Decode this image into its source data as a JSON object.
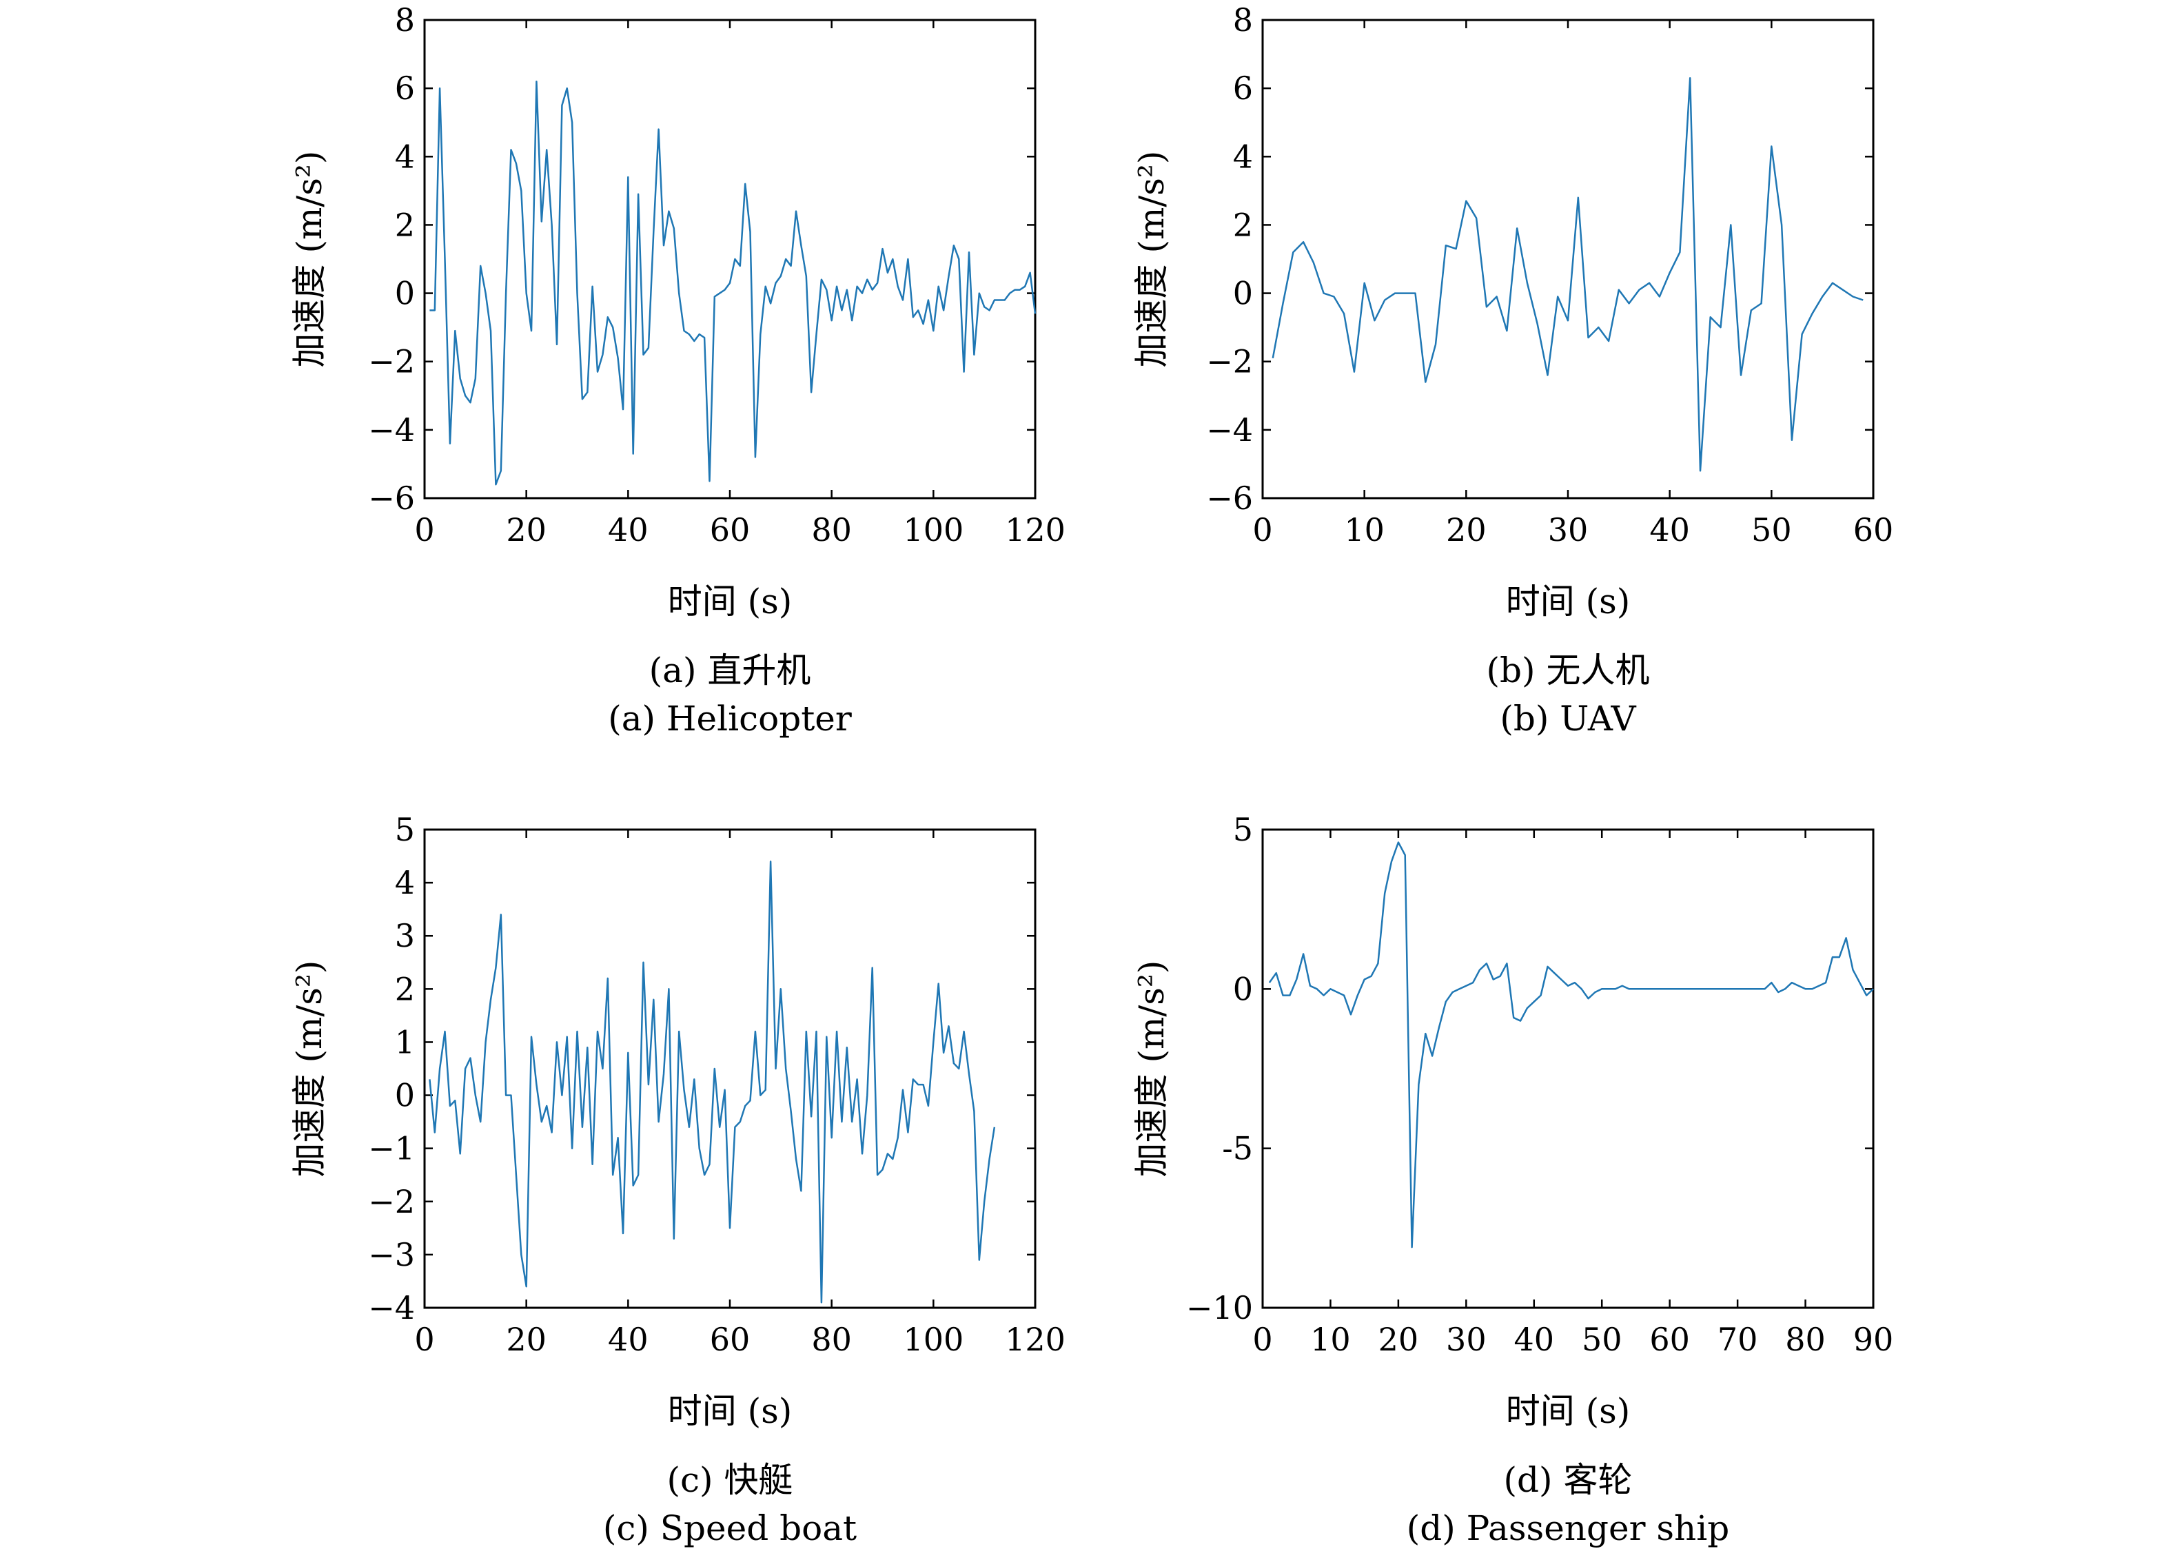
{
  "chart_data": [
    {
      "type": "line",
      "caption_cn": "(a) 直升机",
      "caption_en": "(a) Helicopter",
      "xlabel": "时间 (s)",
      "ylabel": "加速度 (m/s²)",
      "xlim": [
        0,
        120
      ],
      "ylim": [
        -6,
        8
      ],
      "xticks": [
        0,
        20,
        40,
        60,
        80,
        100,
        120
      ],
      "yticks": [
        -6,
        -4,
        -2,
        0,
        2,
        4,
        6,
        8
      ],
      "xtick_labels": [
        "0",
        "20",
        "40",
        "60",
        "80",
        "100",
        "120"
      ],
      "ytick_labels": [
        "−6",
        "−4",
        "−2",
        "0",
        "2",
        "4",
        "6",
        "8"
      ],
      "color": "#1f77b4",
      "x": [
        1,
        2,
        3,
        4,
        5,
        6,
        7,
        8,
        9,
        10,
        11,
        12,
        13,
        14,
        15,
        16,
        17,
        18,
        19,
        20,
        21,
        22,
        23,
        24,
        25,
        26,
        27,
        28,
        29,
        30,
        31,
        32,
        33,
        34,
        35,
        36,
        37,
        38,
        39,
        40,
        41,
        42,
        43,
        44,
        45,
        46,
        47,
        48,
        49,
        50,
        51,
        52,
        53,
        54,
        55,
        56,
        57,
        58,
        59,
        60,
        61,
        62,
        63,
        64,
        65,
        66,
        67,
        68,
        69,
        70,
        71,
        72,
        73,
        74,
        75,
        76,
        77,
        78,
        79,
        80,
        81,
        82,
        83,
        84,
        85,
        86,
        87,
        88,
        89,
        90,
        91,
        92,
        93,
        94,
        95,
        96,
        97,
        98,
        99,
        100,
        101,
        102,
        103,
        104,
        105,
        106,
        107,
        108,
        109,
        110,
        111,
        112,
        113,
        114,
        115,
        116,
        117,
        118,
        119,
        120
      ],
      "y": [
        -0.5,
        -0.5,
        6.0,
        1.0,
        -4.4,
        -1.1,
        -2.5,
        -3.0,
        -3.2,
        -2.5,
        0.8,
        0.0,
        -1.1,
        -5.6,
        -5.2,
        0.0,
        4.2,
        3.8,
        3.0,
        0.0,
        -1.1,
        6.2,
        2.1,
        4.2,
        2.0,
        -1.5,
        5.5,
        6.0,
        5.0,
        0.0,
        -3.1,
        -2.9,
        0.2,
        -2.3,
        -1.8,
        -0.7,
        -1.0,
        -1.9,
        -3.4,
        3.4,
        -4.7,
        2.9,
        -1.8,
        -1.6,
        1.8,
        4.8,
        1.4,
        2.4,
        1.9,
        0.0,
        -1.1,
        -1.2,
        -1.4,
        -1.2,
        -1.3,
        -5.5,
        -0.1,
        0.0,
        0.1,
        0.3,
        1.0,
        0.8,
        3.2,
        1.8,
        -4.8,
        -1.2,
        0.2,
        -0.3,
        0.3,
        0.5,
        1.0,
        0.8,
        2.4,
        1.4,
        0.5,
        -2.9,
        -1.2,
        0.4,
        0.1,
        -0.8,
        0.2,
        -0.5,
        0.1,
        -0.8,
        0.2,
        0.0,
        0.4,
        0.1,
        0.3,
        1.3,
        0.6,
        1.0,
        0.2,
        -0.2,
        1.0,
        -0.7,
        -0.5,
        -0.9,
        -0.2,
        -1.1,
        0.2,
        -0.5,
        0.5,
        1.4,
        1.0,
        -2.3,
        1.2,
        -1.8,
        0.0,
        -0.4,
        -0.5,
        -0.2,
        -0.2,
        -0.2,
        0.0,
        0.1,
        0.1,
        0.2,
        0.6,
        -0.6
      ]
    },
    {
      "type": "line",
      "caption_cn": "(b) 无人机",
      "caption_en": "(b) UAV",
      "xlabel": "时间 (s)",
      "ylabel": "加速度 (m/s²)",
      "xlim": [
        0,
        60
      ],
      "ylim": [
        -6,
        8
      ],
      "xticks": [
        0,
        10,
        20,
        30,
        40,
        50,
        60
      ],
      "yticks": [
        -6,
        -4,
        -2,
        0,
        2,
        4,
        6,
        8
      ],
      "xtick_labels": [
        "0",
        "10",
        "20",
        "30",
        "40",
        "50",
        "60"
      ],
      "ytick_labels": [
        "−6",
        "−4",
        "−2",
        "0",
        "2",
        "4",
        "6",
        "8"
      ],
      "color": "#1f77b4",
      "x": [
        1,
        2,
        3,
        4,
        5,
        6,
        7,
        8,
        9,
        10,
        11,
        12,
        13,
        14,
        15,
        16,
        17,
        18,
        19,
        20,
        21,
        22,
        23,
        24,
        25,
        26,
        27,
        28,
        29,
        30,
        31,
        32,
        33,
        34,
        35,
        36,
        37,
        38,
        39,
        40,
        41,
        42,
        43,
        44,
        45,
        46,
        47,
        48,
        49,
        50,
        51,
        52,
        53,
        54,
        55,
        56,
        57,
        58,
        59
      ],
      "y": [
        -1.9,
        -0.3,
        1.2,
        1.5,
        0.9,
        0.0,
        -0.1,
        -0.6,
        -2.3,
        0.3,
        -0.8,
        -0.2,
        0.0,
        0.0,
        0.0,
        -2.6,
        -1.5,
        1.4,
        1.3,
        2.7,
        2.2,
        -0.4,
        -0.1,
        -1.1,
        1.9,
        0.3,
        -0.9,
        -2.4,
        -0.1,
        -0.8,
        2.8,
        -1.3,
        -1.0,
        -1.4,
        0.1,
        -0.3,
        0.1,
        0.3,
        -0.1,
        0.6,
        1.2,
        6.3,
        -5.2,
        -0.7,
        -1.0,
        2.0,
        -2.4,
        -0.5,
        -0.3,
        4.3,
        2.0,
        -4.3,
        -1.2,
        -0.6,
        -0.1,
        0.3,
        0.1,
        -0.1,
        -0.2
      ]
    },
    {
      "type": "line",
      "caption_cn": "(c) 快艇",
      "caption_en": "(c) Speed boat",
      "xlabel": "时间 (s)",
      "ylabel": "加速度 (m/s²)",
      "xlim": [
        0,
        120
      ],
      "ylim": [
        -4,
        5
      ],
      "xticks": [
        0,
        20,
        40,
        60,
        80,
        100,
        120
      ],
      "yticks": [
        -4,
        -3,
        -2,
        -1,
        0,
        1,
        2,
        3,
        4,
        5
      ],
      "xtick_labels": [
        "0",
        "20",
        "40",
        "60",
        "80",
        "100",
        "120"
      ],
      "ytick_labels": [
        "−4",
        "−3",
        "−2",
        "−1",
        "0",
        "1",
        "2",
        "3",
        "4",
        "5"
      ],
      "color": "#1f77b4",
      "x": [
        1,
        2,
        3,
        4,
        5,
        6,
        7,
        8,
        9,
        10,
        11,
        12,
        13,
        14,
        15,
        16,
        17,
        18,
        19,
        20,
        21,
        22,
        23,
        24,
        25,
        26,
        27,
        28,
        29,
        30,
        31,
        32,
        33,
        34,
        35,
        36,
        37,
        38,
        39,
        40,
        41,
        42,
        43,
        44,
        45,
        46,
        47,
        48,
        49,
        50,
        51,
        52,
        53,
        54,
        55,
        56,
        57,
        58,
        59,
        60,
        61,
        62,
        63,
        64,
        65,
        66,
        67,
        68,
        69,
        70,
        71,
        72,
        73,
        74,
        75,
        76,
        77,
        78,
        79,
        80,
        81,
        82,
        83,
        84,
        85,
        86,
        87,
        88,
        89,
        90,
        91,
        92,
        93,
        94,
        95,
        96,
        97,
        98,
        99,
        100,
        101,
        102,
        103,
        104,
        105,
        106,
        107,
        108,
        109,
        110,
        111,
        112
      ],
      "y": [
        0.3,
        -0.7,
        0.5,
        1.2,
        -0.2,
        -0.1,
        -1.1,
        0.5,
        0.7,
        0.0,
        -0.5,
        1.0,
        1.8,
        2.4,
        3.4,
        0.0,
        0.0,
        -1.5,
        -3.0,
        -3.6,
        1.1,
        0.2,
        -0.5,
        -0.2,
        -0.7,
        1.0,
        0.0,
        1.1,
        -1.0,
        1.2,
        -0.6,
        0.9,
        -1.3,
        1.2,
        0.5,
        2.2,
        -1.5,
        -0.8,
        -2.6,
        0.8,
        -1.7,
        -1.5,
        2.5,
        0.2,
        1.8,
        -0.5,
        0.4,
        2.0,
        -2.7,
        1.2,
        0.1,
        -0.6,
        0.3,
        -1.0,
        -1.5,
        -1.3,
        0.5,
        -0.6,
        0.1,
        -2.5,
        -0.6,
        -0.5,
        -0.2,
        -0.1,
        1.2,
        0.0,
        0.1,
        4.4,
        0.5,
        2.0,
        0.5,
        -0.3,
        -1.2,
        -1.8,
        1.2,
        -0.4,
        1.2,
        -3.9,
        1.1,
        -0.8,
        1.2,
        -0.5,
        0.9,
        -0.5,
        0.3,
        -1.1,
        0.0,
        2.4,
        -1.5,
        -1.4,
        -1.1,
        -1.2,
        -0.8,
        0.1,
        -0.7,
        0.3,
        0.2,
        0.2,
        -0.2,
        1.0,
        2.1,
        0.8,
        1.3,
        0.6,
        0.5,
        1.2,
        0.4,
        -0.3,
        -3.1,
        -2.0,
        -1.2,
        -0.6
      ]
    },
    {
      "type": "line",
      "caption_cn": "(d) 客轮",
      "caption_en": "(d) Passenger ship",
      "xlabel": "时间 (s)",
      "ylabel": "加速度 (m/s²)",
      "xlim": [
        0,
        90
      ],
      "ylim": [
        -10,
        5
      ],
      "xticks": [
        0,
        10,
        20,
        30,
        40,
        50,
        60,
        70,
        80,
        90
      ],
      "yticks": [
        -10,
        -5,
        0,
        5
      ],
      "xtick_labels": [
        "0",
        "10",
        "20",
        "30",
        "40",
        "50",
        "60",
        "70",
        "80",
        "90"
      ],
      "ytick_labels": [
        "−10",
        "-5",
        "0",
        "5"
      ],
      "color": "#1f77b4",
      "x": [
        1,
        2,
        3,
        4,
        5,
        6,
        7,
        8,
        9,
        10,
        11,
        12,
        13,
        14,
        15,
        16,
        17,
        18,
        19,
        20,
        21,
        22,
        23,
        24,
        25,
        26,
        27,
        28,
        29,
        30,
        31,
        32,
        33,
        34,
        35,
        36,
        37,
        38,
        39,
        40,
        41,
        42,
        43,
        44,
        45,
        46,
        47,
        48,
        49,
        50,
        51,
        52,
        53,
        54,
        55,
        56,
        57,
        58,
        59,
        60,
        61,
        62,
        63,
        64,
        65,
        66,
        67,
        68,
        69,
        70,
        71,
        72,
        73,
        74,
        75,
        76,
        77,
        78,
        79,
        80,
        81,
        82,
        83,
        84,
        85,
        86,
        87,
        88,
        89,
        90
      ],
      "y": [
        0.2,
        0.5,
        -0.2,
        -0.2,
        0.3,
        1.1,
        0.1,
        0.0,
        -0.2,
        0.0,
        -0.1,
        -0.2,
        -0.8,
        -0.2,
        0.3,
        0.4,
        0.8,
        3.0,
        4.0,
        4.6,
        4.2,
        -8.1,
        -3.0,
        -1.4,
        -2.1,
        -1.2,
        -0.4,
        -0.1,
        0.0,
        0.1,
        0.2,
        0.6,
        0.8,
        0.3,
        0.4,
        0.8,
        -0.9,
        -1.0,
        -0.6,
        -0.4,
        -0.2,
        0.7,
        0.5,
        0.3,
        0.1,
        0.2,
        0.0,
        -0.3,
        -0.1,
        0.0,
        0.0,
        0.0,
        0.1,
        0.0,
        0.0,
        0.0,
        0.0,
        0.0,
        0.0,
        0.0,
        0.0,
        0.0,
        0.0,
        0.0,
        0.0,
        0.0,
        0.0,
        0.0,
        0.0,
        0.0,
        0.0,
        0.0,
        0.0,
        0.0,
        0.2,
        -0.1,
        0.0,
        0.2,
        0.1,
        0.0,
        0.0,
        0.1,
        0.2,
        1.0,
        1.0,
        1.6,
        0.6,
        0.2,
        -0.2,
        0.0
      ]
    }
  ]
}
